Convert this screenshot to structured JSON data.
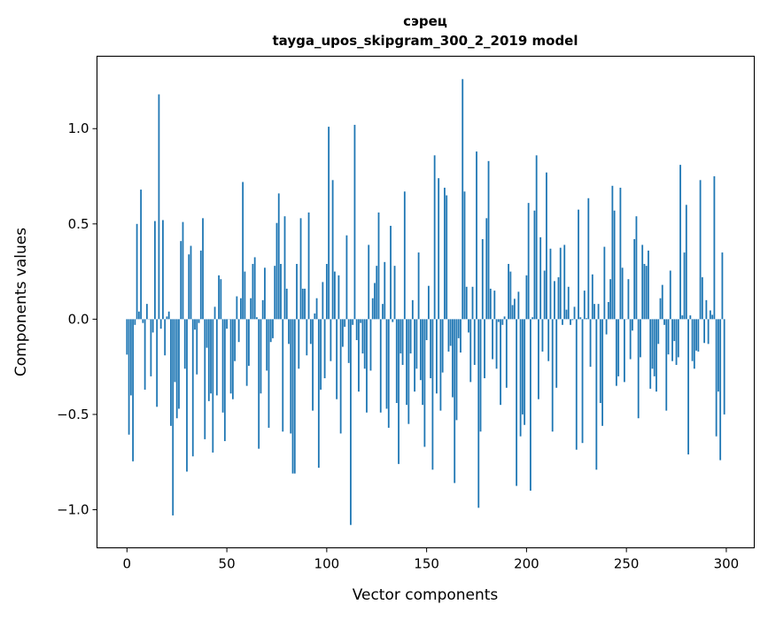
{
  "chart_data": {
    "type": "bar",
    "title": "сэрец",
    "subtitle": "tayga_upos_skipgram_300_2_2019 model",
    "xlabel": "Vector components",
    "ylabel": "Components values",
    "xlim": [
      -15,
      314
    ],
    "ylim": [
      -1.2,
      1.38
    ],
    "xticks": [
      0,
      50,
      100,
      150,
      200,
      250,
      300
    ],
    "xtick_labels": [
      "0",
      "50",
      "100",
      "150",
      "200",
      "250",
      "300"
    ],
    "yticks": [
      -1.0,
      -0.5,
      0.0,
      0.5,
      1.0
    ],
    "ytick_labels": [
      "−1.0",
      "−0.5",
      "0.0",
      "0.5",
      "1.0"
    ],
    "grid": false,
    "bar_color": "#1f77b4",
    "values": [
      -0.186,
      -0.606,
      -0.4,
      -0.746,
      -0.03,
      0.5,
      0.04,
      0.68,
      -0.02,
      -0.37,
      0.08,
      0.0,
      -0.3,
      -0.07,
      0.515,
      -0.46,
      1.18,
      -0.05,
      0.52,
      -0.19,
      0.014,
      0.04,
      -0.56,
      -1.03,
      -0.33,
      -0.52,
      -0.47,
      0.41,
      0.51,
      -0.26,
      -0.8,
      0.34,
      0.385,
      -0.72,
      -0.055,
      -0.29,
      -0.02,
      0.36,
      0.53,
      -0.63,
      -0.15,
      -0.43,
      -0.39,
      -0.7,
      0.065,
      -0.4,
      0.23,
      0.21,
      -0.49,
      -0.64,
      -0.05,
      0.0,
      -0.39,
      -0.42,
      -0.22,
      0.12,
      -0.12,
      0.11,
      0.72,
      0.25,
      -0.35,
      -0.245,
      0.11,
      0.29,
      0.325,
      0.01,
      -0.68,
      -0.39,
      0.1,
      0.27,
      -0.27,
      -0.57,
      -0.12,
      -0.1,
      0.28,
      0.505,
      0.66,
      0.29,
      -0.59,
      0.54,
      0.16,
      -0.13,
      -0.6,
      -0.81,
      -0.81,
      0.29,
      -0.26,
      0.53,
      0.16,
      0.16,
      -0.19,
      0.56,
      -0.13,
      -0.48,
      0.03,
      0.11,
      -0.78,
      -0.37,
      0.195,
      -0.31,
      0.29,
      1.01,
      -0.22,
      0.73,
      0.25,
      -0.42,
      0.23,
      -0.6,
      -0.145,
      -0.04,
      0.44,
      -0.23,
      -1.08,
      -0.03,
      1.02,
      -0.11,
      -0.38,
      -0.02,
      -0.18,
      -0.26,
      -0.49,
      0.39,
      -0.27,
      0.11,
      0.19,
      0.28,
      0.56,
      -0.49,
      0.08,
      0.3,
      -0.47,
      -0.57,
      0.49,
      -0.015,
      0.28,
      -0.44,
      -0.76,
      -0.18,
      -0.24,
      0.67,
      -0.45,
      -0.55,
      -0.18,
      0.1,
      -0.38,
      -0.26,
      0.35,
      -0.32,
      -0.45,
      -0.67,
      -0.11,
      0.175,
      -0.31,
      -0.79,
      0.86,
      -0.39,
      0.74,
      -0.48,
      -0.28,
      0.69,
      0.65,
      -0.17,
      -0.14,
      -0.41,
      -0.86,
      -0.53,
      -0.1,
      -0.175,
      1.26,
      0.67,
      0.17,
      -0.07,
      -0.33,
      0.17,
      -0.24,
      0.88,
      -0.99,
      -0.59,
      0.42,
      -0.31,
      0.53,
      0.83,
      0.16,
      -0.21,
      0.15,
      -0.26,
      -0.015,
      -0.45,
      -0.03,
      0.014,
      -0.36,
      0.29,
      0.25,
      0.074,
      0.107,
      -0.875,
      0.144,
      -0.615,
      -0.5,
      -0.555,
      0.23,
      0.61,
      -0.9,
      0.01,
      0.57,
      0.86,
      -0.42,
      0.43,
      -0.17,
      0.255,
      0.77,
      -0.22,
      0.37,
      -0.59,
      0.2,
      -0.36,
      0.22,
      0.375,
      -0.03,
      0.39,
      0.05,
      0.17,
      -0.03,
      -0.005,
      0.065,
      -0.685,
      0.575,
      0.01,
      -0.65,
      0.15,
      0.005,
      0.635,
      -0.25,
      0.235,
      0.08,
      -0.79,
      0.08,
      -0.44,
      -0.56,
      0.38,
      -0.08,
      0.09,
      0.21,
      0.7,
      0.57,
      -0.35,
      -0.3,
      0.69,
      0.27,
      -0.33,
      0.0,
      0.21,
      -0.21,
      -0.06,
      0.42,
      0.54,
      -0.52,
      -0.2,
      0.39,
      0.29,
      0.28,
      0.36,
      -0.365,
      -0.26,
      -0.3,
      -0.38,
      -0.13,
      0.11,
      0.18,
      -0.03,
      -0.48,
      -0.185,
      0.255,
      -0.22,
      -0.115,
      -0.24,
      -0.2,
      0.81,
      0.02,
      0.35,
      0.6,
      -0.71,
      0.02,
      -0.22,
      -0.26,
      -0.165,
      -0.17,
      0.73,
      0.22,
      -0.125,
      0.1,
      -0.13,
      0.046,
      0.023,
      0.75,
      -0.615,
      -0.38,
      -0.74,
      0.35,
      -0.5
    ]
  }
}
